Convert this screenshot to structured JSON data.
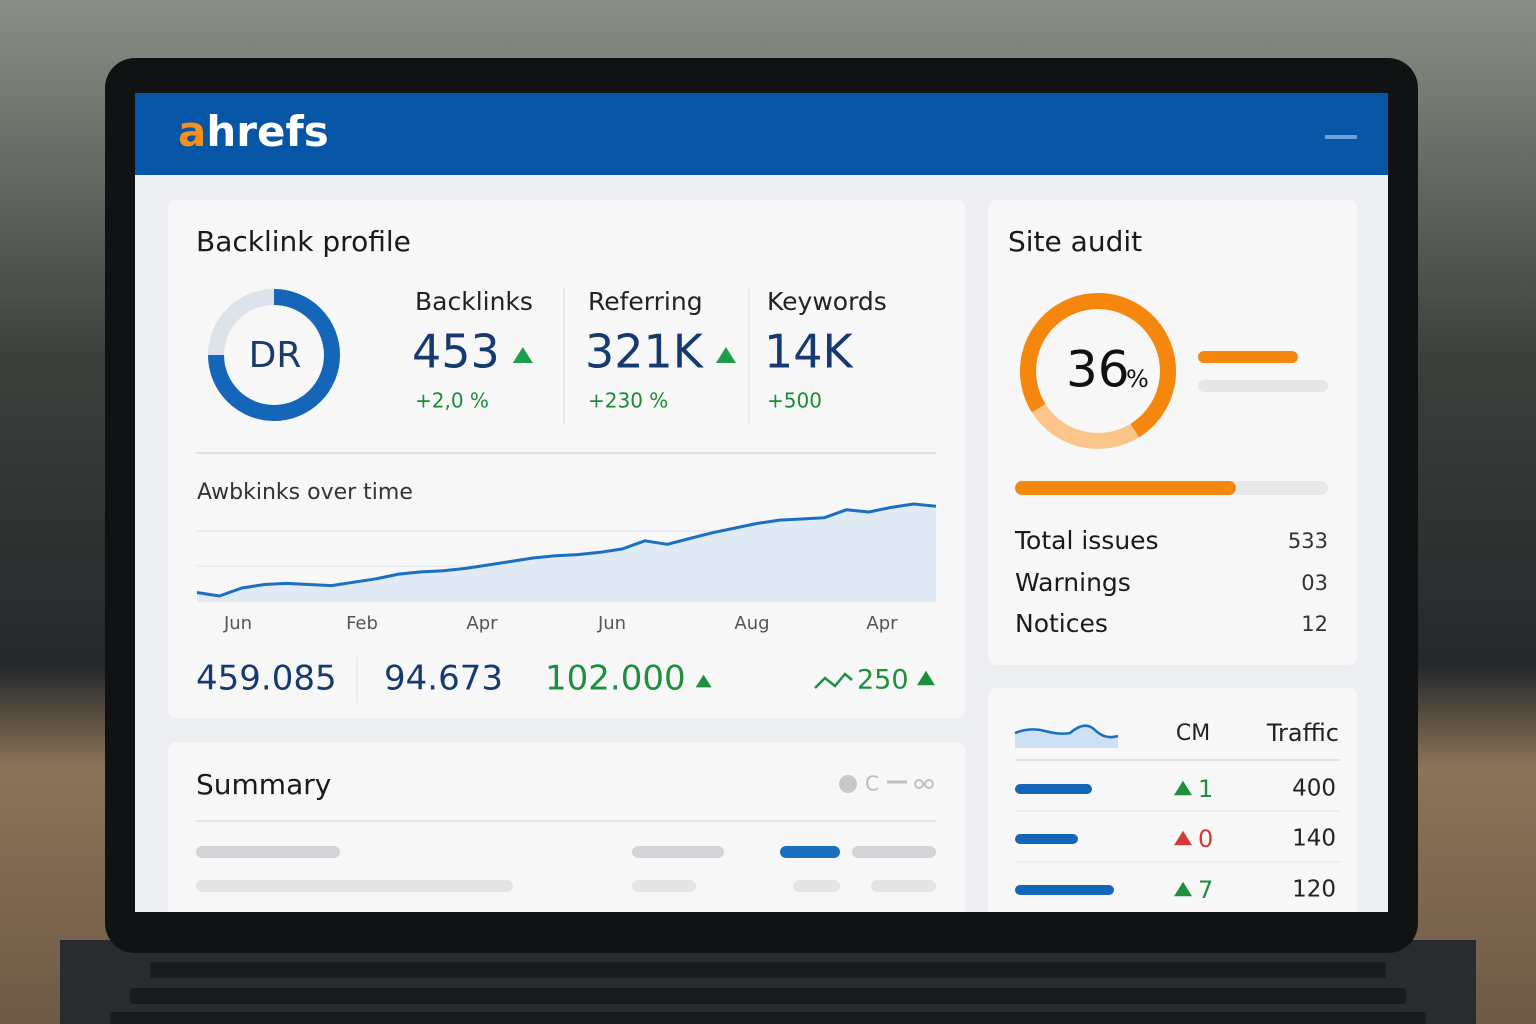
{
  "header": {
    "logo_accent": "a",
    "logo_rest": "hrefs"
  },
  "backlink_profile": {
    "title": "Backlink profile",
    "badge": "DR",
    "metrics": [
      {
        "label": "Backlinks",
        "value": "453",
        "change": "+2,0 %"
      },
      {
        "label": "Referring",
        "value": "321K",
        "change": "+230 %"
      },
      {
        "label": "Keywords",
        "value": "14K",
        "change": "+500"
      }
    ],
    "chart": {
      "type": "line",
      "title": "Awbkinks over time",
      "categories": [
        "Jun",
        "Feb",
        "Apr",
        "Jun",
        "Aug",
        "Apr"
      ],
      "values": [
        18,
        15,
        22,
        25,
        26,
        25,
        24,
        27,
        30,
        34,
        36,
        37,
        39,
        42,
        45,
        48,
        50,
        51,
        53,
        56,
        63,
        60,
        65,
        70,
        74,
        78,
        81,
        82,
        83,
        90,
        88,
        92,
        95,
        93
      ],
      "color": "#1a6fc0"
    },
    "totals": [
      {
        "text": "459.085",
        "color": "#173a6e"
      },
      {
        "text": "94.673",
        "color": "#173a6e"
      },
      {
        "text": "102.000",
        "color": "#1e8f3e"
      },
      {
        "text": "250",
        "color": "#1e8f3e"
      }
    ]
  },
  "site_audit": {
    "title": "Site audit",
    "score": "36",
    "unit": "%",
    "rows": [
      {
        "label": "Total issues",
        "value": "533"
      },
      {
        "label": "Warnings",
        "value": "03"
      },
      {
        "label": "Notices",
        "value": "12"
      }
    ]
  },
  "traffic": {
    "headers": [
      "CM",
      "Traffic"
    ],
    "rows": [
      {
        "change": "1",
        "traffic": "400",
        "color": "#1e8f3e"
      },
      {
        "change": "0",
        "traffic": "140",
        "color": "#d23a3a"
      },
      {
        "change": "7",
        "traffic": "120",
        "color": "#1e8f3e"
      }
    ]
  },
  "summary": {
    "title": "Summary",
    "icon_letter": "C"
  }
}
